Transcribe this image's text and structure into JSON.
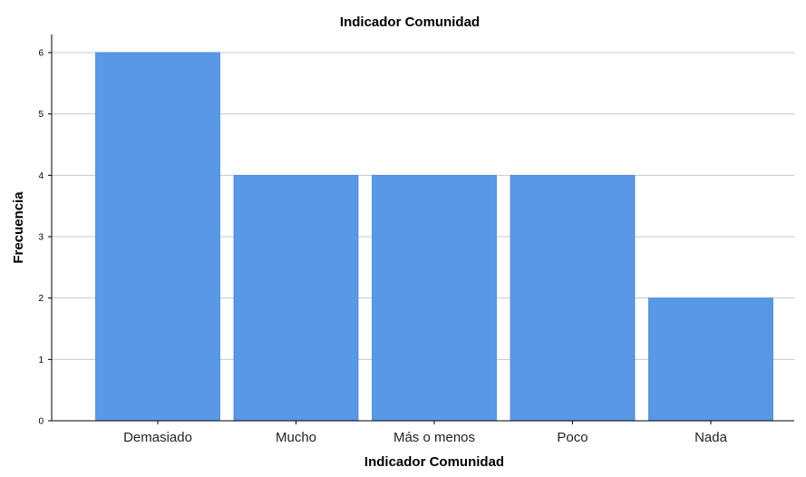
{
  "chart_data": {
    "type": "bar",
    "title": "Indicador Comunidad",
    "xlabel": "Indicador Comunidad",
    "ylabel": "Frecuencia",
    "categories": [
      "Demasiado",
      "Mucho",
      "Más o menos",
      "Poco",
      "Nada"
    ],
    "values": [
      6,
      4,
      4,
      4,
      2
    ],
    "ylim": [
      0,
      6
    ],
    "yticks": [
      "0",
      "1",
      "2",
      "3",
      "4",
      "5",
      "6"
    ],
    "grid": true,
    "legend": "none",
    "colors": {
      "bar": "#5898e4",
      "bar_edge": "#4a86d0",
      "grid": "#c8c8c8",
      "axis": "#000000"
    }
  }
}
